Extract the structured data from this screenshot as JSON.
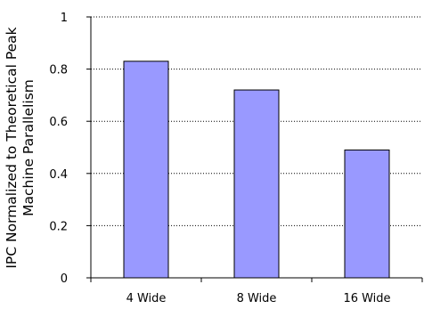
{
  "chart_data": {
    "type": "bar",
    "title": "",
    "xlabel": "",
    "ylabel": [
      "IPC Normalized to Theoretical Peak",
      "Machine Parallelism"
    ],
    "categories": [
      "4 Wide",
      "8 Wide",
      "16 Wide"
    ],
    "values": [
      0.83,
      0.72,
      0.49
    ],
    "ylim": [
      0,
      1
    ],
    "yticks": [
      0,
      0.2,
      0.4,
      0.6,
      0.8,
      1
    ],
    "ytick_labels": [
      "0",
      "0.2",
      "0.4",
      "0.6",
      "0.8",
      "1"
    ],
    "grid": "horizontal dotted",
    "legend": "none",
    "bar_color": "#9999ff",
    "bar_edge_color": "#000000"
  }
}
